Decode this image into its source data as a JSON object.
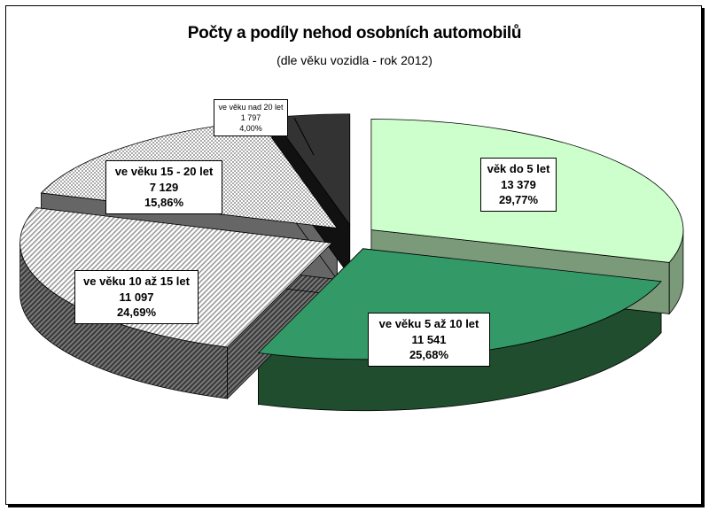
{
  "chart_data": {
    "type": "pie",
    "title": "Počty a podíly nehod osobních automobilů",
    "subtitle": "(dle věku vozidla - rok 2012)",
    "three_d": true,
    "exploded": true,
    "legend": "none",
    "slices": [
      {
        "label": "věk do 5 let",
        "value": 13379,
        "value_text": "13 379",
        "percent": 29.77,
        "percent_text": "29,77%",
        "color": "#ccffcc",
        "side_color": "#7a9a7a",
        "pattern": "solid"
      },
      {
        "label": "ve věku 5 až 10 let",
        "value": 11541,
        "value_text": "11 541",
        "percent": 25.68,
        "percent_text": "25,68%",
        "color": "#339966",
        "side_color": "#1f4d2e",
        "pattern": "solid"
      },
      {
        "label": "ve věku 10 až 15 let",
        "value": 11097,
        "value_text": "11 097",
        "percent": 24.69,
        "percent_text": "24,69%",
        "color": "#f2f2f2",
        "side_color": "#555555",
        "pattern": "diagonal"
      },
      {
        "label": "ve věku 15 - 20 let",
        "value": 7129,
        "value_text": "7 129",
        "percent": 15.86,
        "percent_text": "15,86%",
        "color": "#ffffff",
        "side_color": "#666666",
        "pattern": "checker"
      },
      {
        "label": "ve věku nad 20 let",
        "value": 1797,
        "value_text": "1 797",
        "percent": 4.0,
        "percent_text": "4,00%",
        "color": "#333333",
        "side_color": "#111111",
        "pattern": "solid"
      }
    ]
  }
}
